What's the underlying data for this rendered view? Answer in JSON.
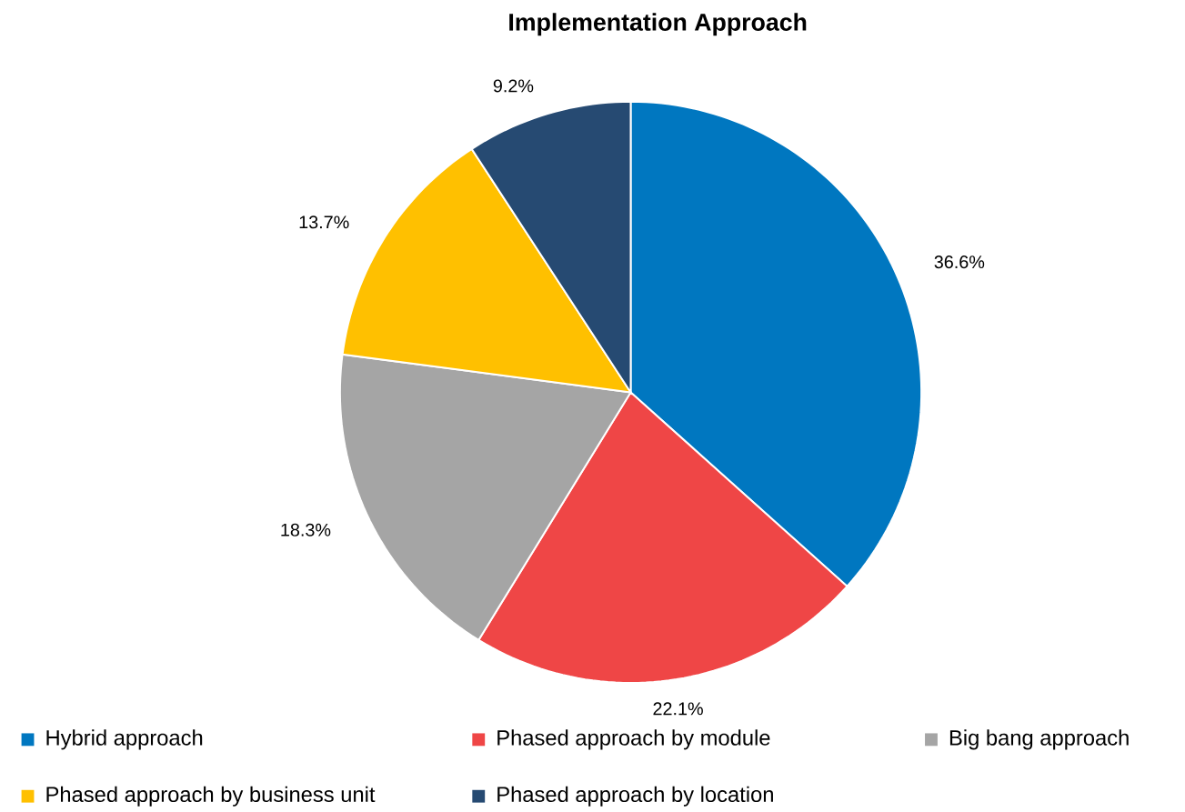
{
  "chart_data": {
    "type": "pie",
    "title": "Implementation Approach",
    "categories": [
      "Hybrid approach",
      "Phased approach by module",
      "Big bang approach",
      "Phased approach by business unit",
      "Phased approach by location"
    ],
    "values": [
      36.6,
      22.1,
      18.3,
      13.7,
      9.2
    ],
    "value_labels": [
      "36.6%",
      "22.1%",
      "18.3%",
      "13.7%",
      "9.2%"
    ],
    "colors": [
      "#0077c0",
      "#ef4646",
      "#a5a5a5",
      "#ffc000",
      "#264a72"
    ],
    "legend": "bottom"
  }
}
